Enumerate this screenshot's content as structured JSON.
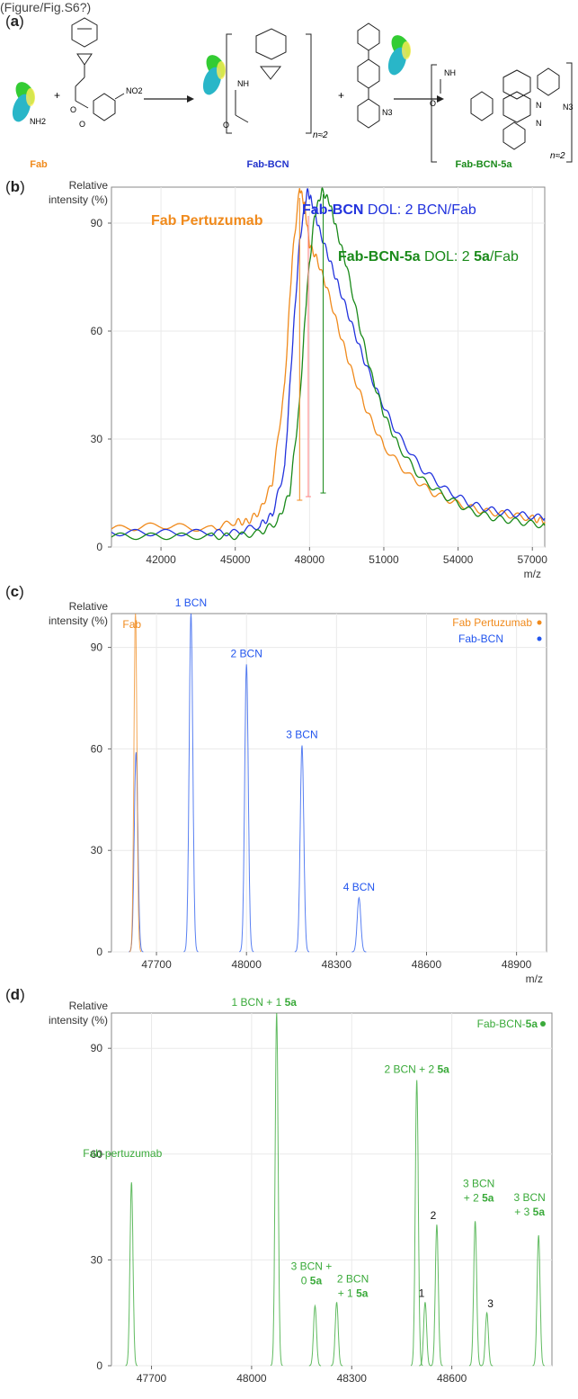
{
  "figure": {
    "caption_fragment": "(Figure/Fig.S6?)",
    "panel_a": {
      "label": "a",
      "reactant_labels": [
        "Fab",
        "Fab-BCN",
        "Fab-BCN-5a"
      ],
      "reactant_colors": [
        "#f08a1c",
        "#2233cc",
        "#1a8a1a"
      ],
      "plus": "+",
      "nh2": "NH2",
      "no2": "NO2",
      "n3": "N3",
      "n_approx_2": "n≈2"
    },
    "panel_b": {
      "label": "b"
    },
    "panel_c": {
      "label": "c"
    },
    "panel_d": {
      "label": "d"
    }
  },
  "chart_data": [
    {
      "id": "b",
      "type": "line",
      "ylabel": "Relative intensity (%)",
      "xlabel": "m/z",
      "xlim": [
        40000,
        57500
      ],
      "ylim": [
        0,
        100
      ],
      "xticks": [
        42000,
        45000,
        48000,
        51000,
        54000,
        57000
      ],
      "yticks": [
        0,
        30,
        60,
        90
      ],
      "grid": true,
      "annotations": [
        {
          "text": "Fab Pertuzumab",
          "color": "#f08a1c",
          "bold": true
        },
        {
          "text": "Fab-BCN",
          "color": "#2233dd",
          "bold": true,
          "suffix": " DOL: 2 BCN/Fab"
        },
        {
          "text": "Fab-BCN-5a",
          "color": "#1a8a1a",
          "bold": true,
          "suffix_parts": [
            " DOL: 2 ",
            "5a",
            "/Fab"
          ]
        }
      ],
      "series": [
        {
          "name": "Fab Pertuzumab",
          "color": "#f08a1c",
          "x": [
            40000,
            42000,
            44000,
            45000,
            45500,
            46000,
            46500,
            47000,
            47300,
            47600,
            47800,
            48000,
            48300,
            48700,
            49200,
            49700,
            50300,
            51000,
            52000,
            53000,
            54000,
            55000,
            56000,
            57000,
            57500
          ],
          "y": [
            5,
            6,
            5,
            7,
            7,
            10,
            18,
            45,
            80,
            100,
            95,
            84,
            80,
            72,
            60,
            49,
            38,
            28,
            20,
            15,
            12,
            10,
            9,
            8,
            7
          ]
        },
        {
          "name": "Fab-BCN",
          "color": "#2233dd",
          "x": [
            40000,
            42000,
            44000,
            45000,
            46000,
            46500,
            47000,
            47300,
            47600,
            47900,
            48100,
            48400,
            48800,
            49200,
            49700,
            50200,
            50800,
            51500,
            52500,
            53500,
            54500,
            55500,
            56500,
            57500
          ],
          "y": [
            4,
            4,
            4,
            4,
            6,
            9,
            22,
            55,
            85,
            99,
            96,
            88,
            80,
            72,
            62,
            52,
            42,
            32,
            22,
            16,
            12,
            10,
            9,
            8
          ]
        },
        {
          "name": "Fab-BCN-5a",
          "color": "#1a8a1a",
          "x": [
            40000,
            42000,
            44000,
            45000,
            46000,
            46700,
            47200,
            47600,
            47900,
            48200,
            48500,
            48800,
            49100,
            49500,
            50000,
            50500,
            51000,
            51600,
            52500,
            53500,
            54500,
            55500,
            56500,
            57500
          ],
          "y": [
            3,
            3,
            3,
            3,
            4,
            7,
            15,
            40,
            72,
            92,
            99,
            96,
            88,
            78,
            62,
            48,
            37,
            28,
            19,
            14,
            10,
            8,
            7,
            6
          ]
        }
      ],
      "markers": [
        {
          "x": 47600,
          "color": "#f08a1c",
          "y_top": 97,
          "y_bottom": 13
        },
        {
          "x": 47950,
          "color": "#ff8080",
          "y_top": 92,
          "y_bottom": 14
        },
        {
          "x": 48550,
          "color": "#1a8a1a",
          "y_top": 98,
          "y_bottom": 15
        }
      ]
    },
    {
      "id": "c",
      "type": "line",
      "ylabel": "Relative intensity (%)",
      "xlabel": "m/z",
      "xlim": [
        47550,
        49000
      ],
      "ylim": [
        0,
        100
      ],
      "xticks": [
        47700,
        48000,
        48300,
        48600,
        48900
      ],
      "yticks": [
        0,
        30,
        60,
        90
      ],
      "grid": true,
      "legend": "top-right",
      "series": [
        {
          "name": "Fab Pertuzumab",
          "color": "#f08a1c",
          "peaks": [
            {
              "x": 47630,
              "y": 100,
              "label": "Fab"
            }
          ]
        },
        {
          "name": "Fab-BCN",
          "color": "#2255ee",
          "peaks": [
            {
              "x": 47632,
              "y": 59,
              "label": ""
            },
            {
              "x": 47815,
              "y": 100,
              "label": "1 BCN"
            },
            {
              "x": 48000,
              "y": 85,
              "label": "2 BCN"
            },
            {
              "x": 48185,
              "y": 61,
              "label": "3 BCN"
            },
            {
              "x": 48375,
              "y": 16,
              "label": "4 BCN"
            }
          ]
        }
      ]
    },
    {
      "id": "d",
      "type": "line",
      "ylabel": "Relative intensity (%)",
      "xlim": [
        47580,
        48900
      ],
      "ylim": [
        0,
        100
      ],
      "xticks": [
        47700,
        48000,
        48300,
        48600
      ],
      "yticks": [
        0,
        30,
        60,
        90
      ],
      "grid": true,
      "legend": "top-right",
      "series": [
        {
          "name": "Fab-BCN-5a",
          "color": "#3aaa3a",
          "peaks": [
            {
              "x": 47640,
              "y": 52,
              "label": "Fab-pertuzumab"
            },
            {
              "x": 48075,
              "y": 100,
              "label": "1 BCN + 1 5a"
            },
            {
              "x": 48190,
              "y": 17,
              "label": "3 BCN + 0 5a"
            },
            {
              "x": 48255,
              "y": 18,
              "label": "2 BCN + 1 5a"
            },
            {
              "x": 48495,
              "y": 81,
              "label": "2 BCN + 2 5a"
            },
            {
              "x": 48520,
              "y": 18,
              "label": "1"
            },
            {
              "x": 48555,
              "y": 40,
              "label": "2"
            },
            {
              "x": 48670,
              "y": 41,
              "label": "3 BCN + 2 5a"
            },
            {
              "x": 48705,
              "y": 15,
              "label": "3"
            },
            {
              "x": 48860,
              "y": 37,
              "label": "3 BCN + 3 5a"
            }
          ]
        }
      ]
    }
  ]
}
